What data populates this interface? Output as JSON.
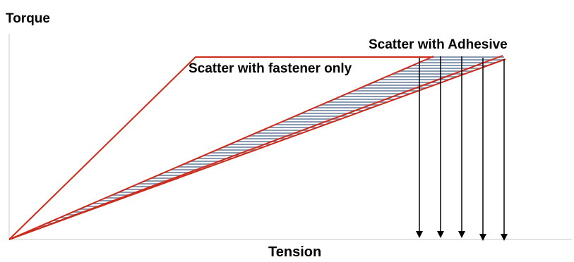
{
  "axes": {
    "y_label": "Torque",
    "x_label": "Tension"
  },
  "labels": {
    "adhesive": "Scatter with Adhesive",
    "fastener": "Scatter with fastener only"
  },
  "colors": {
    "scatter_lines": "#cc2a1a",
    "hatch": "#8a9ab0",
    "axes": "#c8c8c8",
    "arrows": "#000000"
  },
  "tension_arrow_count": 5
}
